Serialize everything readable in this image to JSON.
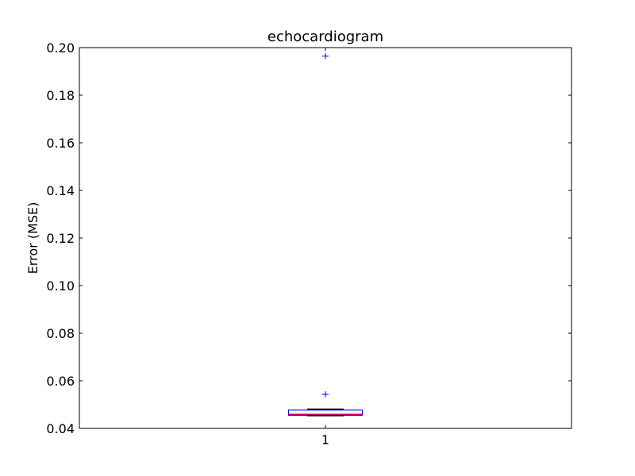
{
  "chart_data": {
    "type": "box",
    "title": "echocardiogram",
    "xlabel": "",
    "ylabel": "Error (MSE)",
    "ylim": [
      0.04,
      0.2
    ],
    "yticks": [
      "0.04",
      "0.06",
      "0.08",
      "0.10",
      "0.12",
      "0.14",
      "0.16",
      "0.18",
      "0.20"
    ],
    "categories": [
      "1"
    ],
    "boxes": [
      {
        "category": "1",
        "whisker_low": 0.0454,
        "q1": 0.0455,
        "median": 0.0459,
        "q3": 0.0477,
        "whisker_high": 0.048,
        "outliers": [
          0.0543,
          0.1964
        ]
      }
    ],
    "grid": false,
    "colors": {
      "box": "#0000ff",
      "median": "#cc0066",
      "whisker_cap": "#000000",
      "outlier": "#0000ff",
      "axes": "#000000"
    }
  }
}
